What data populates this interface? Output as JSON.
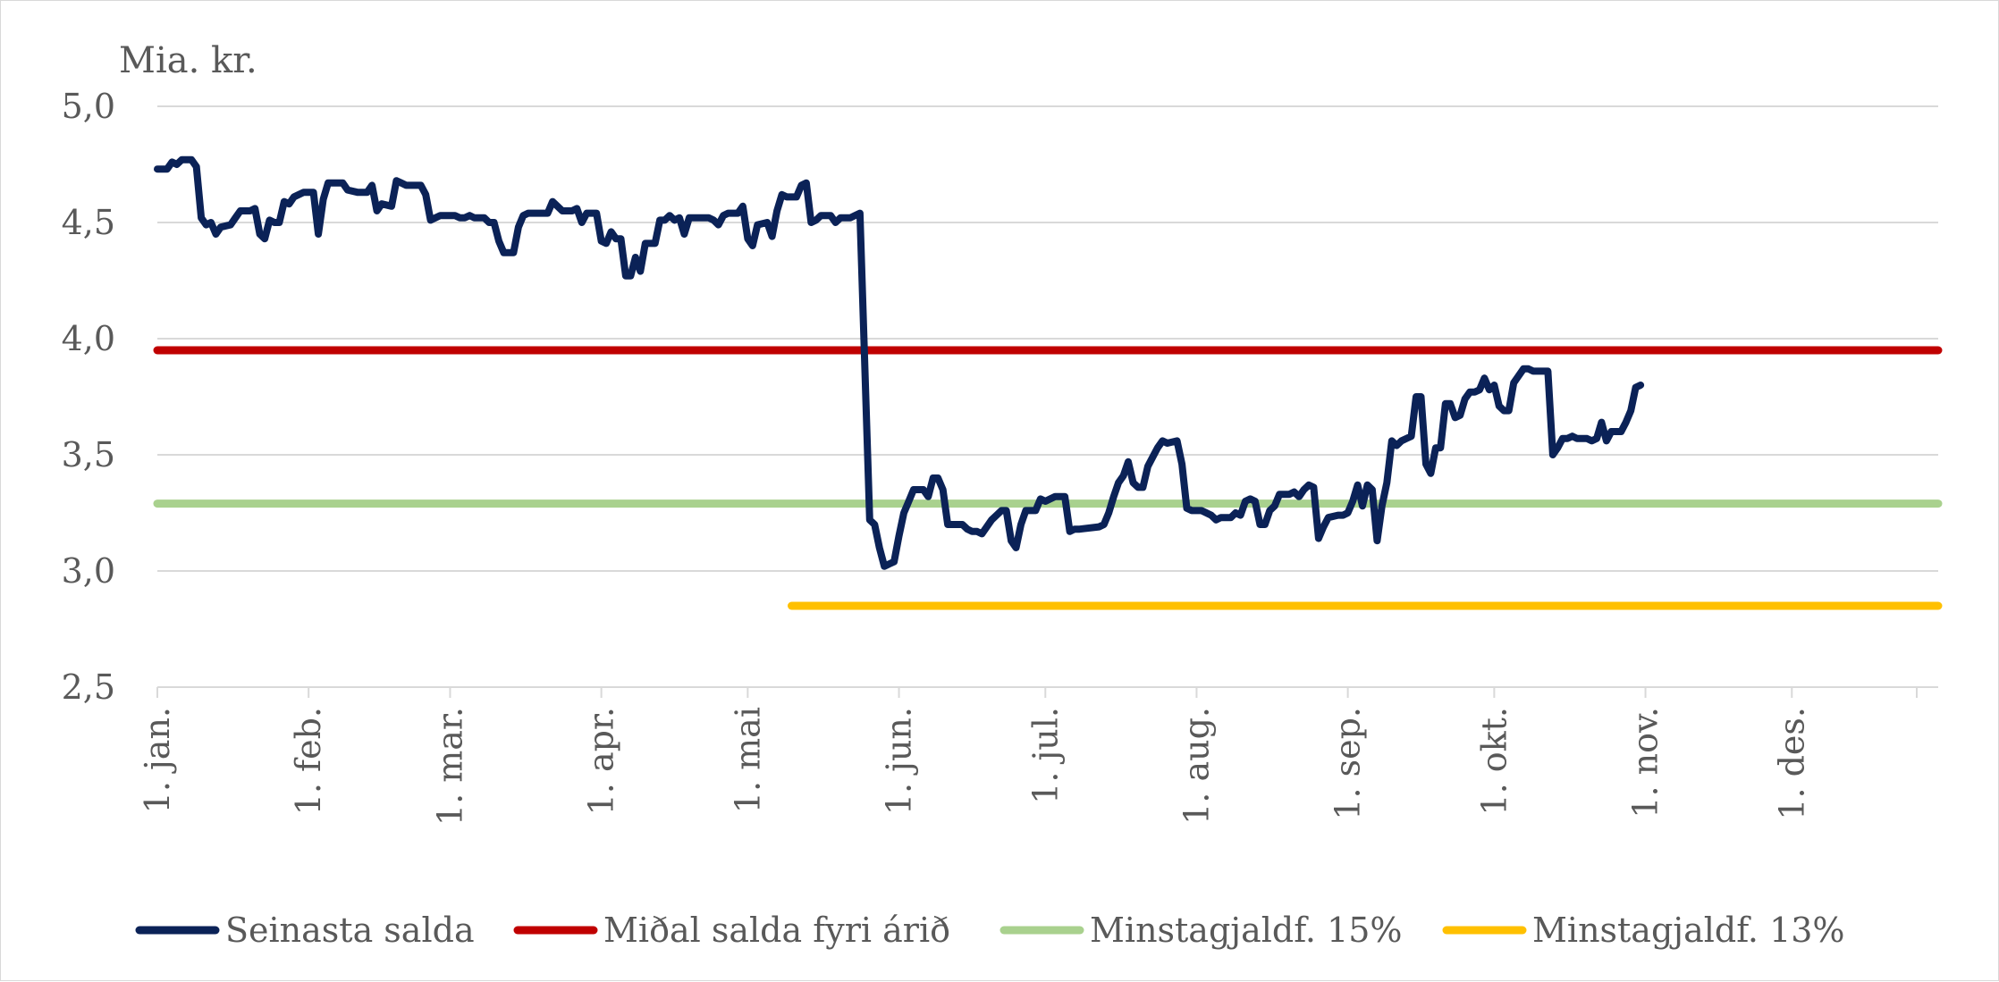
{
  "chart_data": {
    "type": "line",
    "ylabel": "Mia. kr.",
    "ylim": [
      2.5,
      5.0
    ],
    "y_ticks": [
      "5,0",
      "4,5",
      "4,0",
      "3,5",
      "3,0",
      "2,5"
    ],
    "y_tick_values": [
      5.0,
      4.5,
      4.0,
      3.5,
      3.0,
      2.5
    ],
    "x_domain_days": [
      1,
      366
    ],
    "x_ticks": [
      {
        "label": "1. jan.",
        "day": 1
      },
      {
        "label": "1. feb.",
        "day": 32
      },
      {
        "label": "1. mar.",
        "day": 61
      },
      {
        "label": "1. apr.",
        "day": 92
      },
      {
        "label": "1. mai",
        "day": 122
      },
      {
        "label": "1. jun.",
        "day": 153
      },
      {
        "label": "1. jul.",
        "day": 183
      },
      {
        "label": "1. aug.",
        "day": 214
      },
      {
        "label": "1. sep.",
        "day": 245
      },
      {
        "label": "1. okt.",
        "day": 275
      },
      {
        "label": "1. nov.",
        "day": 306
      },
      {
        "label": "1. des.",
        "day": 336
      }
    ],
    "grid": true,
    "legend": "bottom",
    "series": [
      {
        "name": "Seinasta salda",
        "color": "#0b2257",
        "points": [
          [
            1,
            4.73
          ],
          [
            3,
            4.73
          ],
          [
            4,
            4.76
          ],
          [
            5,
            4.75
          ],
          [
            6,
            4.77
          ],
          [
            8,
            4.77
          ],
          [
            9,
            4.74
          ],
          [
            10,
            4.52
          ],
          [
            11,
            4.49
          ],
          [
            12,
            4.5
          ],
          [
            13,
            4.45
          ],
          [
            14,
            4.48
          ],
          [
            16,
            4.49
          ],
          [
            17,
            4.52
          ],
          [
            18,
            4.55
          ],
          [
            20,
            4.55
          ],
          [
            21,
            4.56
          ],
          [
            22,
            4.45
          ],
          [
            23,
            4.43
          ],
          [
            24,
            4.51
          ],
          [
            25,
            4.5
          ],
          [
            26,
            4.5
          ],
          [
            27,
            4.59
          ],
          [
            28,
            4.58
          ],
          [
            29,
            4.61
          ],
          [
            30,
            4.62
          ],
          [
            31,
            4.63
          ],
          [
            33,
            4.63
          ],
          [
            34,
            4.45
          ],
          [
            35,
            4.6
          ],
          [
            36,
            4.67
          ],
          [
            39,
            4.67
          ],
          [
            40,
            4.64
          ],
          [
            42,
            4.63
          ],
          [
            44,
            4.63
          ],
          [
            45,
            4.66
          ],
          [
            46,
            4.55
          ],
          [
            47,
            4.58
          ],
          [
            49,
            4.57
          ],
          [
            50,
            4.68
          ],
          [
            51,
            4.67
          ],
          [
            52,
            4.66
          ],
          [
            55,
            4.66
          ],
          [
            56,
            4.62
          ],
          [
            57,
            4.51
          ],
          [
            58,
            4.52
          ],
          [
            59,
            4.53
          ],
          [
            62,
            4.53
          ],
          [
            63,
            4.52
          ],
          [
            64,
            4.52
          ],
          [
            65,
            4.53
          ],
          [
            66,
            4.52
          ],
          [
            68,
            4.52
          ],
          [
            69,
            4.5
          ],
          [
            70,
            4.5
          ],
          [
            71,
            4.42
          ],
          [
            72,
            4.37
          ],
          [
            74,
            4.37
          ],
          [
            75,
            4.48
          ],
          [
            76,
            4.53
          ],
          [
            77,
            4.54
          ],
          [
            81,
            4.54
          ],
          [
            82,
            4.59
          ],
          [
            83,
            4.57
          ],
          [
            84,
            4.55
          ],
          [
            86,
            4.55
          ],
          [
            87,
            4.56
          ],
          [
            88,
            4.5
          ],
          [
            89,
            4.54
          ],
          [
            91,
            4.54
          ],
          [
            92,
            4.42
          ],
          [
            93,
            4.41
          ],
          [
            94,
            4.46
          ],
          [
            95,
            4.43
          ],
          [
            96,
            4.43
          ],
          [
            97,
            4.27
          ],
          [
            98,
            4.27
          ],
          [
            99,
            4.35
          ],
          [
            100,
            4.29
          ],
          [
            101,
            4.41
          ],
          [
            102,
            4.41
          ],
          [
            103,
            4.41
          ],
          [
            104,
            4.51
          ],
          [
            105,
            4.51
          ],
          [
            106,
            4.53
          ],
          [
            107,
            4.51
          ],
          [
            108,
            4.52
          ],
          [
            109,
            4.45
          ],
          [
            110,
            4.52
          ],
          [
            114,
            4.52
          ],
          [
            115,
            4.51
          ],
          [
            116,
            4.49
          ],
          [
            117,
            4.53
          ],
          [
            118,
            4.54
          ],
          [
            120,
            4.54
          ],
          [
            121,
            4.57
          ],
          [
            122,
            4.43
          ],
          [
            123,
            4.4
          ],
          [
            124,
            4.49
          ],
          [
            126,
            4.5
          ],
          [
            127,
            4.44
          ],
          [
            128,
            4.55
          ],
          [
            129,
            4.62
          ],
          [
            130,
            4.61
          ],
          [
            132,
            4.61
          ],
          [
            133,
            4.66
          ],
          [
            134,
            4.67
          ],
          [
            135,
            4.5
          ],
          [
            136,
            4.51
          ],
          [
            137,
            4.53
          ],
          [
            139,
            4.53
          ],
          [
            140,
            4.5
          ],
          [
            141,
            4.52
          ],
          [
            142,
            4.52
          ],
          [
            143,
            4.52
          ],
          [
            144,
            4.53
          ],
          [
            145,
            4.54
          ],
          [
            147,
            3.22
          ],
          [
            148,
            3.2
          ],
          [
            149,
            3.1
          ],
          [
            150,
            3.02
          ],
          [
            151,
            3.03
          ],
          [
            152,
            3.04
          ],
          [
            153,
            3.15
          ],
          [
            154,
            3.25
          ],
          [
            155,
            3.3
          ],
          [
            156,
            3.35
          ],
          [
            158,
            3.35
          ],
          [
            159,
            3.32
          ],
          [
            160,
            3.4
          ],
          [
            161,
            3.4
          ],
          [
            162,
            3.35
          ],
          [
            163,
            3.2
          ],
          [
            165,
            3.2
          ],
          [
            166,
            3.2
          ],
          [
            167,
            3.18
          ],
          [
            168,
            3.17
          ],
          [
            169,
            3.17
          ],
          [
            170,
            3.16
          ],
          [
            171,
            3.19
          ],
          [
            172,
            3.22
          ],
          [
            173,
            3.24
          ],
          [
            174,
            3.26
          ],
          [
            175,
            3.26
          ],
          [
            176,
            3.13
          ],
          [
            177,
            3.1
          ],
          [
            178,
            3.2
          ],
          [
            179,
            3.26
          ],
          [
            181,
            3.26
          ],
          [
            182,
            3.31
          ],
          [
            183,
            3.3
          ],
          [
            184,
            3.31
          ],
          [
            185,
            3.32
          ],
          [
            187,
            3.32
          ],
          [
            188,
            3.17
          ],
          [
            189,
            3.18
          ],
          [
            190,
            3.18
          ],
          [
            194,
            3.19
          ],
          [
            195,
            3.2
          ],
          [
            196,
            3.25
          ],
          [
            197,
            3.32
          ],
          [
            198,
            3.38
          ],
          [
            199,
            3.41
          ],
          [
            200,
            3.47
          ],
          [
            201,
            3.38
          ],
          [
            202,
            3.36
          ],
          [
            203,
            3.36
          ],
          [
            204,
            3.45
          ],
          [
            205,
            3.49
          ],
          [
            206,
            3.53
          ],
          [
            207,
            3.56
          ],
          [
            208,
            3.55
          ],
          [
            210,
            3.56
          ],
          [
            211,
            3.46
          ],
          [
            212,
            3.27
          ],
          [
            213,
            3.26
          ],
          [
            215,
            3.26
          ],
          [
            216,
            3.25
          ],
          [
            217,
            3.24
          ],
          [
            218,
            3.22
          ],
          [
            219,
            3.23
          ],
          [
            221,
            3.23
          ],
          [
            222,
            3.25
          ],
          [
            223,
            3.24
          ],
          [
            224,
            3.3
          ],
          [
            225,
            3.31
          ],
          [
            226,
            3.3
          ],
          [
            227,
            3.2
          ],
          [
            228,
            3.2
          ],
          [
            229,
            3.26
          ],
          [
            230,
            3.28
          ],
          [
            231,
            3.33
          ],
          [
            233,
            3.33
          ],
          [
            234,
            3.34
          ],
          [
            235,
            3.32
          ],
          [
            236,
            3.35
          ],
          [
            237,
            3.37
          ],
          [
            238,
            3.36
          ],
          [
            239,
            3.14
          ],
          [
            240,
            3.19
          ],
          [
            241,
            3.23
          ],
          [
            243,
            3.24
          ],
          [
            244,
            3.24
          ],
          [
            245,
            3.25
          ],
          [
            246,
            3.3
          ],
          [
            247,
            3.37
          ],
          [
            248,
            3.28
          ],
          [
            249,
            3.37
          ],
          [
            250,
            3.35
          ],
          [
            251,
            3.13
          ],
          [
            252,
            3.28
          ],
          [
            253,
            3.38
          ],
          [
            254,
            3.56
          ],
          [
            255,
            3.54
          ],
          [
            256,
            3.56
          ],
          [
            257,
            3.57
          ],
          [
            258,
            3.58
          ],
          [
            259,
            3.75
          ],
          [
            260,
            3.75
          ],
          [
            261,
            3.46
          ],
          [
            262,
            3.42
          ],
          [
            263,
            3.53
          ],
          [
            264,
            3.53
          ],
          [
            265,
            3.72
          ],
          [
            266,
            3.72
          ],
          [
            267,
            3.66
          ],
          [
            268,
            3.67
          ],
          [
            269,
            3.74
          ],
          [
            270,
            3.77
          ],
          [
            271,
            3.77
          ],
          [
            272,
            3.78
          ],
          [
            273,
            3.83
          ],
          [
            274,
            3.78
          ],
          [
            275,
            3.8
          ],
          [
            276,
            3.71
          ],
          [
            277,
            3.69
          ],
          [
            278,
            3.69
          ],
          [
            279,
            3.81
          ],
          [
            280,
            3.84
          ],
          [
            281,
            3.87
          ],
          [
            282,
            3.87
          ],
          [
            283,
            3.86
          ],
          [
            286,
            3.86
          ],
          [
            287,
            3.5
          ],
          [
            288,
            3.53
          ],
          [
            289,
            3.57
          ],
          [
            290,
            3.57
          ],
          [
            291,
            3.58
          ],
          [
            292,
            3.57
          ],
          [
            294,
            3.57
          ],
          [
            295,
            3.56
          ],
          [
            296,
            3.57
          ],
          [
            297,
            3.64
          ],
          [
            298,
            3.56
          ],
          [
            299,
            3.6
          ],
          [
            301,
            3.6
          ],
          [
            302,
            3.64
          ],
          [
            303,
            3.69
          ],
          [
            304,
            3.79
          ],
          [
            305,
            3.8
          ]
        ]
      },
      {
        "name": "Miðal salda fyri árið",
        "color": "#c00000",
        "points": [
          [
            1,
            3.95
          ],
          [
            366,
            3.95
          ]
        ]
      },
      {
        "name": "Minstagjaldf. 15%",
        "color": "#a9d18e",
        "points": [
          [
            1,
            3.29
          ],
          [
            366,
            3.29
          ]
        ]
      },
      {
        "name": "Minstagjaldf. 13%",
        "color": "#ffc000",
        "points": [
          [
            131,
            2.85
          ],
          [
            366,
            2.85
          ]
        ]
      }
    ]
  }
}
